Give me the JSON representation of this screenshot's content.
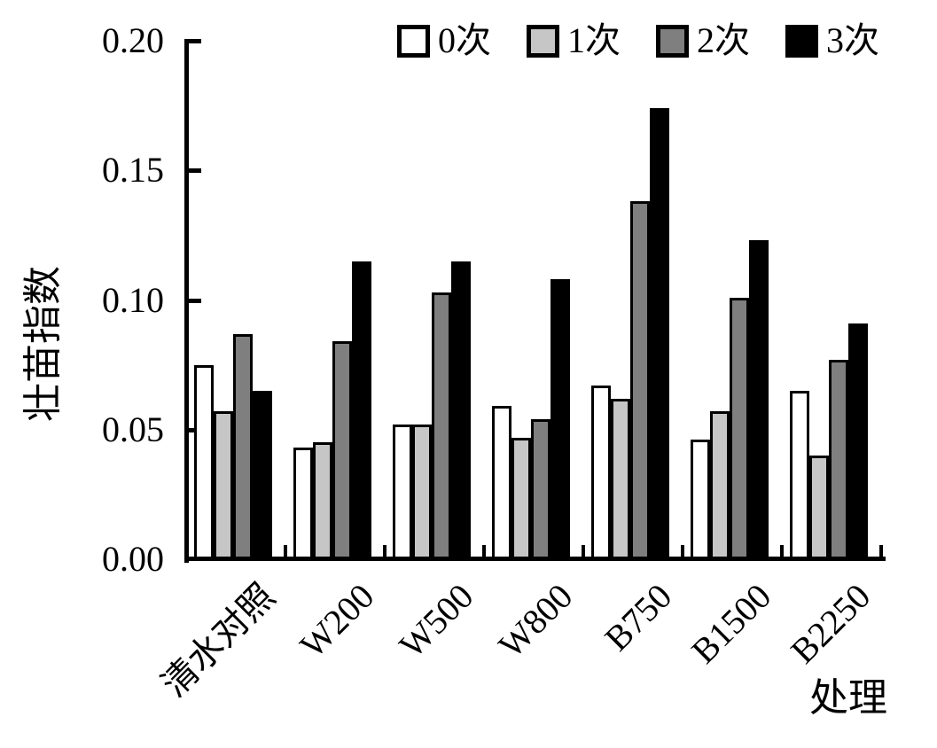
{
  "chart_data": {
    "type": "bar",
    "title": "",
    "ylabel": "壮苗指数",
    "xlabel": "处理",
    "ylim": [
      0,
      0.2
    ],
    "grid": false,
    "legend_position": "top",
    "bar_outline_color": "#000000",
    "yticks": [
      {
        "label": "0.20",
        "value": 0.2
      },
      {
        "label": "0.15",
        "value": 0.15
      },
      {
        "label": "0.10",
        "value": 0.1
      },
      {
        "label": "0.05",
        "value": 0.05
      },
      {
        "label": "0.00",
        "value": 0.0
      }
    ],
    "categories": [
      "清水对照",
      "W200",
      "W500",
      "W800",
      "B750",
      "B1500",
      "B2250"
    ],
    "series": [
      {
        "name": "0次",
        "color": "#ffffff",
        "values": [
          0.075,
          0.043,
          0.052,
          0.059,
          0.067,
          0.046,
          0.065
        ]
      },
      {
        "name": "1次",
        "color": "#c6c6c6",
        "values": [
          0.057,
          0.045,
          0.052,
          0.047,
          0.062,
          0.057,
          0.04
        ]
      },
      {
        "name": "2次",
        "color": "#7f7f7f",
        "values": [
          0.087,
          0.084,
          0.103,
          0.054,
          0.138,
          0.101,
          0.077
        ]
      },
      {
        "name": "3次",
        "color": "#000000",
        "values": [
          0.065,
          0.115,
          0.115,
          0.108,
          0.174,
          0.123,
          0.091
        ]
      }
    ]
  }
}
